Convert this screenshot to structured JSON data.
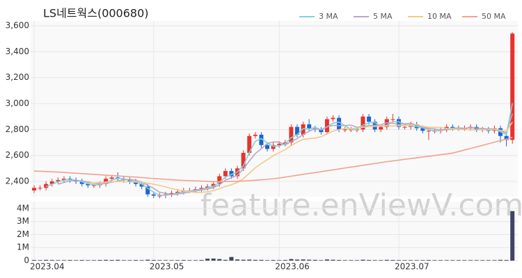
{
  "chart_data": {
    "type": "candlestick",
    "title": "LS네트웍스(000680)",
    "watermark": "feature.enViewV.com",
    "up_color": "#e8322d",
    "down_color": "#1f64d0",
    "volume_color": "#3f4566",
    "open": [
      2330,
      2350,
      2350,
      2380,
      2400,
      2410,
      2420,
      2410,
      2400,
      2380,
      2370,
      2370,
      2380,
      2420,
      2430,
      2420,
      2410,
      2400,
      2380,
      2360,
      2300,
      2290,
      2290,
      2300,
      2310,
      2320,
      2330,
      2330,
      2340,
      2350,
      2360,
      2380,
      2440,
      2480,
      2440,
      2500,
      2620,
      2750,
      2760,
      2680,
      2650,
      2680,
      2690,
      2700,
      2820,
      2760,
      2840,
      2810,
      2800,
      2780,
      2880,
      2890,
      2800,
      2800,
      2800,
      2800,
      2900,
      2860,
      2800,
      2820,
      2880,
      2880,
      2820,
      2820,
      2840,
      2810,
      2790,
      2790,
      2790,
      2800,
      2820,
      2810,
      2810,
      2810,
      2820,
      2800,
      2800,
      2790,
      2810,
      2750,
      2720
    ],
    "high": [
      2370,
      2370,
      2400,
      2420,
      2430,
      2440,
      2440,
      2430,
      2420,
      2400,
      2390,
      2400,
      2440,
      2450,
      2470,
      2440,
      2430,
      2420,
      2400,
      2380,
      2320,
      2310,
      2320,
      2330,
      2340,
      2350,
      2350,
      2360,
      2370,
      2380,
      2400,
      2460,
      2500,
      2500,
      2520,
      2640,
      2770,
      2780,
      2780,
      2700,
      2700,
      2710,
      2720,
      2840,
      2840,
      2860,
      2880,
      2830,
      2820,
      2900,
      2910,
      2910,
      2820,
      2820,
      2820,
      2920,
      2920,
      2880,
      2840,
      2900,
      2920,
      2900,
      2840,
      2860,
      2860,
      2830,
      2810,
      2810,
      2820,
      2840,
      2840,
      2830,
      2830,
      2840,
      2840,
      2820,
      2820,
      2830,
      2830,
      2770,
      3550
    ],
    "low": [
      2310,
      2330,
      2330,
      2360,
      2380,
      2390,
      2390,
      2380,
      2360,
      2350,
      2350,
      2350,
      2360,
      2400,
      2400,
      2390,
      2380,
      2360,
      2340,
      2280,
      2270,
      2270,
      2270,
      2280,
      2290,
      2300,
      2310,
      2310,
      2320,
      2330,
      2340,
      2360,
      2420,
      2420,
      2420,
      2480,
      2600,
      2730,
      2660,
      2630,
      2630,
      2660,
      2670,
      2680,
      2740,
      2740,
      2790,
      2780,
      2760,
      2760,
      2860,
      2780,
      2780,
      2780,
      2780,
      2780,
      2840,
      2780,
      2780,
      2800,
      2860,
      2800,
      2800,
      2800,
      2790,
      2770,
      2720,
      2770,
      2770,
      2780,
      2790,
      2790,
      2790,
      2790,
      2780,
      2780,
      2770,
      2770,
      2700,
      2670,
      2690
    ],
    "close": [
      2350,
      2350,
      2380,
      2400,
      2410,
      2420,
      2410,
      2400,
      2380,
      2370,
      2370,
      2380,
      2420,
      2430,
      2420,
      2410,
      2400,
      2380,
      2360,
      2300,
      2290,
      2290,
      2300,
      2310,
      2320,
      2330,
      2330,
      2340,
      2350,
      2360,
      2380,
      2440,
      2480,
      2440,
      2500,
      2620,
      2750,
      2760,
      2680,
      2650,
      2680,
      2690,
      2700,
      2820,
      2760,
      2840,
      2810,
      2800,
      2780,
      2880,
      2890,
      2800,
      2800,
      2800,
      2800,
      2900,
      2860,
      2800,
      2820,
      2880,
      2880,
      2820,
      2820,
      2840,
      2810,
      2790,
      2790,
      2790,
      2800,
      2820,
      2810,
      2810,
      2810,
      2820,
      2800,
      2800,
      2790,
      2810,
      2750,
      2720,
      3540
    ],
    "volume": [
      50000,
      40000,
      60000,
      50000,
      40000,
      40000,
      50000,
      40000,
      50000,
      40000,
      40000,
      50000,
      60000,
      50000,
      60000,
      40000,
      40000,
      50000,
      40000,
      70000,
      50000,
      40000,
      40000,
      40000,
      40000,
      50000,
      40000,
      40000,
      50000,
      150000,
      160000,
      120000,
      60000,
      280000,
      90000,
      70000,
      80000,
      60000,
      60000,
      40000,
      50000,
      40000,
      50000,
      120000,
      80000,
      90000,
      70000,
      60000,
      40000,
      90000,
      70000,
      50000,
      40000,
      40000,
      40000,
      70000,
      50000,
      40000,
      40000,
      60000,
      50000,
      40000,
      40000,
      40000,
      40000,
      40000,
      50000,
      40000,
      40000,
      40000,
      40000,
      40000,
      40000,
      40000,
      40000,
      40000,
      40000,
      40000,
      60000,
      50000,
      3800000
    ],
    "series": [
      {
        "name": "3 MA",
        "color": "#7fd3d8",
        "values": [
          null,
          null,
          2360,
          2377,
          2397,
          2410,
          2413,
          2410,
          2397,
          2383,
          2373,
          2373,
          2390,
          2410,
          2423,
          2420,
          2410,
          2397,
          2380,
          2347,
          2317,
          2293,
          2293,
          2300,
          2310,
          2320,
          2327,
          2333,
          2340,
          2350,
          2363,
          2393,
          2433,
          2453,
          2473,
          2520,
          2623,
          2710,
          2730,
          2697,
          2670,
          2673,
          2690,
          2737,
          2760,
          2807,
          2803,
          2817,
          2797,
          2820,
          2850,
          2857,
          2830,
          2800,
          2800,
          2833,
          2853,
          2853,
          2827,
          2833,
          2860,
          2860,
          2840,
          2827,
          2823,
          2813,
          2797,
          2790,
          2793,
          2803,
          2810,
          2813,
          2810,
          2813,
          2810,
          2807,
          2797,
          2800,
          2783,
          2760,
          3003
        ]
      },
      {
        "name": "5 MA",
        "color": "#b9a5c9",
        "values": [
          null,
          null,
          null,
          null,
          2378,
          2392,
          2404,
          2408,
          2404,
          2396,
          2386,
          2380,
          2384,
          2394,
          2404,
          2412,
          2416,
          2408,
          2394,
          2370,
          2346,
          2316,
          2308,
          2298,
          2302,
          2310,
          2318,
          2326,
          2334,
          2342,
          2352,
          2374,
          2410,
          2428,
          2448,
          2496,
          2558,
          2614,
          2652,
          2692,
          2704,
          2704,
          2680,
          2708,
          2730,
          2762,
          2786,
          2806,
          2798,
          2822,
          2832,
          2830,
          2830,
          2834,
          2818,
          2820,
          2832,
          2832,
          2836,
          2852,
          2848,
          2840,
          2844,
          2848,
          2834,
          2816,
          2810,
          2804,
          2796,
          2798,
          2802,
          2806,
          2810,
          2814,
          2810,
          2808,
          2804,
          2806,
          2790,
          2774,
          2922
        ]
      },
      {
        "name": "10 MA",
        "color": "#f2c98a",
        "values": [
          null,
          null,
          null,
          null,
          null,
          null,
          null,
          null,
          null,
          2386,
          2388,
          2391,
          2395,
          2398,
          2399,
          2398,
          2397,
          2395,
          2393,
          2386,
          2378,
          2369,
          2357,
          2345,
          2335,
          2327,
          2320,
          2316,
          2315,
          2321,
          2329,
          2343,
          2361,
          2374,
          2392,
          2421,
          2463,
          2505,
          2538,
          2567,
          2597,
          2622,
          2644,
          2676,
          2702,
          2724,
          2730,
          2734,
          2744,
          2767,
          2788,
          2799,
          2809,
          2807,
          2811,
          2817,
          2822,
          2824,
          2828,
          2828,
          2827,
          2829,
          2831,
          2835,
          2836,
          2825,
          2818,
          2817,
          2815,
          2809,
          2802,
          2801,
          2800,
          2798,
          2797,
          2798,
          2798,
          2800,
          2795,
          2785,
          2857
        ]
      },
      {
        "name": "50 MA",
        "color": "#f4a08a",
        "values": [
          2480,
          2478,
          2476,
          2474,
          2472,
          2469,
          2466,
          2463,
          2460,
          2457,
          2454,
          2451,
          2448,
          2445,
          2442,
          2439,
          2436,
          2433,
          2430,
          2426,
          2422,
          2419,
          2416,
          2413,
          2410,
          2408,
          2406,
          2404,
          2402,
          2400,
          2398,
          2398,
          2399,
          2400,
          2401,
          2403,
          2406,
          2409,
          2412,
          2416,
          2420,
          2426,
          2433,
          2440,
          2447,
          2454,
          2461,
          2468,
          2475,
          2482,
          2489,
          2496,
          2503,
          2510,
          2517,
          2524,
          2531,
          2538,
          2545,
          2552,
          2558,
          2564,
          2570,
          2576,
          2582,
          2588,
          2594,
          2600,
          2606,
          2612,
          2618,
          2630,
          2642,
          2654,
          2666,
          2678,
          2690,
          2702,
          2714,
          2726,
          2740
        ]
      }
    ],
    "xticks": [
      {
        "value": 0,
        "label": "2023.04"
      },
      {
        "value": 20,
        "label": "2023.05"
      },
      {
        "value": 41,
        "label": "2023.06"
      },
      {
        "value": 61,
        "label": "2023.07"
      }
    ],
    "ylim": [
      2282,
      3638
    ],
    "yticks": [
      {
        "value": 2400,
        "label": "2,400"
      },
      {
        "value": 2600,
        "label": "2,600"
      },
      {
        "value": 2800,
        "label": "2,800"
      },
      {
        "value": 3000,
        "label": "3,000"
      },
      {
        "value": 3200,
        "label": "3,200"
      },
      {
        "value": 3400,
        "label": "3,400"
      },
      {
        "value": 3600,
        "label": "3,600"
      }
    ],
    "volume_ylim": [
      0,
      4530000
    ],
    "volume_ticks": [
      0,
      {
        "value": 1000000,
        "label": "1M"
      },
      {
        "value": 2000000,
        "label": "2M"
      },
      {
        "value": 3000000,
        "label": "3M"
      },
      {
        "value": 4000000,
        "label": "4M"
      }
    ],
    "grid": true
  }
}
